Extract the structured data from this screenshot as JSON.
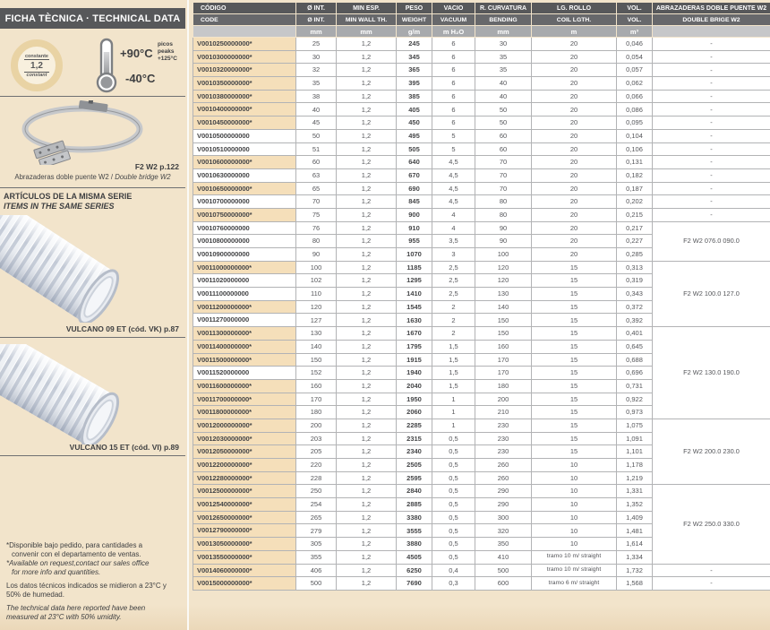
{
  "sidebar": {
    "title": "FICHA TÈCNICA · TECHNICAL DATA",
    "badge": {
      "top": "constante",
      "value": "1,2",
      "bottom": "constant"
    },
    "temperature": {
      "max": "+90°C",
      "min": "-40°C",
      "peaks": [
        "picos",
        "peaks",
        "+125°C"
      ]
    },
    "clamp": {
      "ref": "F2 W2 p.122",
      "caption_es": "Abrazaderas doble puente W2 / ",
      "caption_en": "Double bridge W2"
    },
    "series": {
      "title_es": "ARTÍCULOS DE LA MISMA SERIE",
      "title_en": "ITEMS IN THE SAME SERIES",
      "items": [
        {
          "label": "VULCANO 09 ET (cód. VK) p.87"
        },
        {
          "label": "VULCANO 15 ET (cód. VI) p.89"
        }
      ]
    },
    "footnotes": [
      {
        "text": "*Disponible bajo pedido, para cantidades a",
        "italic": false,
        "indent": false,
        "gap": false
      },
      {
        "text": "convenir con el departamento de ventas.",
        "italic": false,
        "indent": true,
        "gap": false
      },
      {
        "text": "*Available on request,contact our sales office",
        "italic": true,
        "indent": false,
        "gap": false
      },
      {
        "text": "for more info and quantities.",
        "italic": true,
        "indent": true,
        "gap": false
      },
      {
        "text": "Los datos técnicos indicados se midieron a 23°C y",
        "italic": false,
        "indent": false,
        "gap": true
      },
      {
        "text": "50% de humedad.",
        "italic": false,
        "indent": false,
        "gap": false
      },
      {
        "text": "The technical data here reported have been",
        "italic": true,
        "indent": false,
        "gap": true
      },
      {
        "text": "measured at 23°C with 50% umidity.",
        "italic": true,
        "indent": false,
        "gap": false
      }
    ]
  },
  "table": {
    "head_row1": [
      "CÓDIGO",
      "Ø INT.",
      "MIN ESP.",
      "PESO",
      "VACIO",
      "R. CURVATURA",
      "LG. ROLLO",
      "VOL.",
      "ABRAZADERAS DOBLE PUENTE W2"
    ],
    "head_row2": [
      "CODE",
      "Ø INT.",
      "MIN WALL TH.",
      "WEIGHT",
      "VACUUM",
      "BENDING",
      "COIL LGTH.",
      "VOL.",
      "DOUBLE BRIGE W2"
    ],
    "units_row": [
      "",
      "mm",
      "mm",
      "g/m",
      "m H₂O",
      "mm",
      "m",
      "m³",
      ""
    ],
    "rows": [
      {
        "code": "V0010250000000*",
        "d": "25",
        "wall": "1,2",
        "weight": "245",
        "vac": "6",
        "bend": "30",
        "coil": "20",
        "vol": "0,046",
        "clamp": "-"
      },
      {
        "code": "V0010300000000*",
        "d": "30",
        "wall": "1,2",
        "weight": "345",
        "vac": "6",
        "bend": "35",
        "coil": "20",
        "vol": "0,054",
        "clamp": "-"
      },
      {
        "code": "V0010320000000*",
        "d": "32",
        "wall": "1,2",
        "weight": "365",
        "vac": "6",
        "bend": "35",
        "coil": "20",
        "vol": "0,057",
        "clamp": "-"
      },
      {
        "code": "V0010350000000*",
        "d": "35",
        "wall": "1,2",
        "weight": "395",
        "vac": "6",
        "bend": "40",
        "coil": "20",
        "vol": "0,062",
        "clamp": "-"
      },
      {
        "code": "V0010380000000*",
        "d": "38",
        "wall": "1,2",
        "weight": "385",
        "vac": "6",
        "bend": "40",
        "coil": "20",
        "vol": "0,066",
        "clamp": "-"
      },
      {
        "code": "V0010400000000*",
        "d": "40",
        "wall": "1,2",
        "weight": "405",
        "vac": "6",
        "bend": "50",
        "coil": "20",
        "vol": "0,086",
        "clamp": "-"
      },
      {
        "code": "V0010450000000*",
        "d": "45",
        "wall": "1,2",
        "weight": "450",
        "vac": "6",
        "bend": "50",
        "coil": "20",
        "vol": "0,095",
        "clamp": "-"
      },
      {
        "code": "V0010500000000",
        "d": "50",
        "wall": "1,2",
        "weight": "495",
        "vac": "5",
        "bend": "60",
        "coil": "20",
        "vol": "0,104",
        "clamp": "-"
      },
      {
        "code": "V0010510000000",
        "d": "51",
        "wall": "1,2",
        "weight": "505",
        "vac": "5",
        "bend": "60",
        "coil": "20",
        "vol": "0,106",
        "clamp": "-"
      },
      {
        "code": "V0010600000000*",
        "d": "60",
        "wall": "1,2",
        "weight": "640",
        "vac": "4,5",
        "bend": "70",
        "coil": "20",
        "vol": "0,131",
        "clamp": "-"
      },
      {
        "code": "V0010630000000",
        "d": "63",
        "wall": "1,2",
        "weight": "670",
        "vac": "4,5",
        "bend": "70",
        "coil": "20",
        "vol": "0,182",
        "clamp": "-"
      },
      {
        "code": "V0010650000000*",
        "d": "65",
        "wall": "1,2",
        "weight": "690",
        "vac": "4,5",
        "bend": "70",
        "coil": "20",
        "vol": "0,187",
        "clamp": "-"
      },
      {
        "code": "V0010700000000",
        "d": "70",
        "wall": "1,2",
        "weight": "845",
        "vac": "4,5",
        "bend": "80",
        "coil": "20",
        "vol": "0,202",
        "clamp": "-"
      },
      {
        "code": "V0010750000000*",
        "d": "75",
        "wall": "1,2",
        "weight": "900",
        "vac": "4",
        "bend": "80",
        "coil": "20",
        "vol": "0,215",
        "clamp": "-"
      },
      {
        "code": "V0010760000000",
        "d": "76",
        "wall": "1,2",
        "weight": "910",
        "vac": "4",
        "bend": "90",
        "coil": "20",
        "vol": "0,217",
        "clamp": {
          "label": "F2 W2 076.0 090.0",
          "span": 3
        }
      },
      {
        "code": "V0010800000000",
        "d": "80",
        "wall": "1,2",
        "weight": "955",
        "vac": "3,5",
        "bend": "90",
        "coil": "20",
        "vol": "0,227",
        "clamp": null
      },
      {
        "code": "V0010900000000",
        "d": "90",
        "wall": "1,2",
        "weight": "1070",
        "vac": "3",
        "bend": "100",
        "coil": "20",
        "vol": "0,285",
        "clamp": null
      },
      {
        "code": "V0011000000000*",
        "d": "100",
        "wall": "1,2",
        "weight": "1185",
        "vac": "2,5",
        "bend": "120",
        "coil": "15",
        "vol": "0,313",
        "clamp": {
          "label": "F2 W2 100.0 127.0",
          "span": 5
        }
      },
      {
        "code": "V0011020000000",
        "d": "102",
        "wall": "1,2",
        "weight": "1295",
        "vac": "2,5",
        "bend": "120",
        "coil": "15",
        "vol": "0,319",
        "clamp": null
      },
      {
        "code": "V0011100000000",
        "d": "110",
        "wall": "1,2",
        "weight": "1410",
        "vac": "2,5",
        "bend": "130",
        "coil": "15",
        "vol": "0,343",
        "clamp": null
      },
      {
        "code": "V0011200000000*",
        "d": "120",
        "wall": "1,2",
        "weight": "1545",
        "vac": "2",
        "bend": "140",
        "coil": "15",
        "vol": "0,372",
        "clamp": null
      },
      {
        "code": "V0011270000000",
        "d": "127",
        "wall": "1,2",
        "weight": "1630",
        "vac": "2",
        "bend": "150",
        "coil": "15",
        "vol": "0,392",
        "clamp": null
      },
      {
        "code": "V0011300000000*",
        "d": "130",
        "wall": "1,2",
        "weight": "1670",
        "vac": "2",
        "bend": "150",
        "coil": "15",
        "vol": "0,401",
        "clamp": {
          "label": "F2 W2 130.0 190.0",
          "span": 7
        }
      },
      {
        "code": "V0011400000000*",
        "d": "140",
        "wall": "1,2",
        "weight": "1795",
        "vac": "1,5",
        "bend": "160",
        "coil": "15",
        "vol": "0,645",
        "clamp": null
      },
      {
        "code": "V0011500000000*",
        "d": "150",
        "wall": "1,2",
        "weight": "1915",
        "vac": "1,5",
        "bend": "170",
        "coil": "15",
        "vol": "0,688",
        "clamp": null
      },
      {
        "code": "V0011520000000",
        "d": "152",
        "wall": "1,2",
        "weight": "1940",
        "vac": "1,5",
        "bend": "170",
        "coil": "15",
        "vol": "0,696",
        "clamp": null
      },
      {
        "code": "V0011600000000*",
        "d": "160",
        "wall": "1,2",
        "weight": "2040",
        "vac": "1,5",
        "bend": "180",
        "coil": "15",
        "vol": "0,731",
        "clamp": null
      },
      {
        "code": "V0011700000000*",
        "d": "170",
        "wall": "1,2",
        "weight": "1950",
        "vac": "1",
        "bend": "200",
        "coil": "15",
        "vol": "0,922",
        "clamp": null
      },
      {
        "code": "V0011800000000*",
        "d": "180",
        "wall": "1,2",
        "weight": "2060",
        "vac": "1",
        "bend": "210",
        "coil": "15",
        "vol": "0,973",
        "clamp": null
      },
      {
        "code": "V0012000000000*",
        "d": "200",
        "wall": "1,2",
        "weight": "2285",
        "vac": "1",
        "bend": "230",
        "coil": "15",
        "vol": "1,075",
        "clamp": {
          "label": "F2 W2 200.0 230.0",
          "span": 5
        }
      },
      {
        "code": "V0012030000000*",
        "d": "203",
        "wall": "1,2",
        "weight": "2315",
        "vac": "0,5",
        "bend": "230",
        "coil": "15",
        "vol": "1,091",
        "clamp": null
      },
      {
        "code": "V0012050000000*",
        "d": "205",
        "wall": "1,2",
        "weight": "2340",
        "vac": "0,5",
        "bend": "230",
        "coil": "15",
        "vol": "1,101",
        "clamp": null
      },
      {
        "code": "V0012200000000*",
        "d": "220",
        "wall": "1,2",
        "weight": "2505",
        "vac": "0,5",
        "bend": "260",
        "coil": "10",
        "vol": "1,178",
        "clamp": null
      },
      {
        "code": "V0012280000000*",
        "d": "228",
        "wall": "1,2",
        "weight": "2595",
        "vac": "0,5",
        "bend": "260",
        "coil": "10",
        "vol": "1,219",
        "clamp": null
      },
      {
        "code": "V0012500000000*",
        "d": "250",
        "wall": "1,2",
        "weight": "2840",
        "vac": "0,5",
        "bend": "290",
        "coil": "10",
        "vol": "1,331",
        "clamp": {
          "label": "F2 W2 250.0 330.0",
          "span": 6
        }
      },
      {
        "code": "V0012540000000*",
        "d": "254",
        "wall": "1,2",
        "weight": "2885",
        "vac": "0,5",
        "bend": "290",
        "coil": "10",
        "vol": "1,352",
        "clamp": null
      },
      {
        "code": "V0012650000000*",
        "d": "265",
        "wall": "1,2",
        "weight": "3380",
        "vac": "0,5",
        "bend": "300",
        "coil": "10",
        "vol": "1,409",
        "clamp": null
      },
      {
        "code": "V0012790000000*",
        "d": "279",
        "wall": "1,2",
        "weight": "3555",
        "vac": "0,5",
        "bend": "320",
        "coil": "10",
        "vol": "1,481",
        "clamp": null
      },
      {
        "code": "V0013050000000*",
        "d": "305",
        "wall": "1,2",
        "weight": "3880",
        "vac": "0,5",
        "bend": "350",
        "coil": "10",
        "vol": "1,614",
        "clamp": null
      },
      {
        "code": "V0013550000000*",
        "d": "355",
        "wall": "1,2",
        "weight": "4505",
        "vac": "0,5",
        "bend": "410",
        "coil": "tramo 10 m/ straight",
        "vol": "1,334",
        "clamp": null
      },
      {
        "code": "V0014060000000*",
        "d": "406",
        "wall": "1,2",
        "weight": "6250",
        "vac": "0,4",
        "bend": "500",
        "coil": "tramo 10 m/ straight",
        "vol": "1,732",
        "clamp": "-"
      },
      {
        "code": "V0015000000000*",
        "d": "500",
        "wall": "1,2",
        "weight": "7690",
        "vac": "0,3",
        "bend": "600",
        "coil": "tramo 6 m/ straight",
        "vol": "1,568",
        "clamp": "-"
      }
    ]
  },
  "colors": {
    "page_cream": "#f2e4cb",
    "code_cell_beige": "#f5dfba",
    "header_dark": "#57585a",
    "header_mid": "#67686b",
    "header_light": "#a8aaad",
    "badge_ring_tan": "#e9d3a4",
    "text_dark": "#454648"
  }
}
